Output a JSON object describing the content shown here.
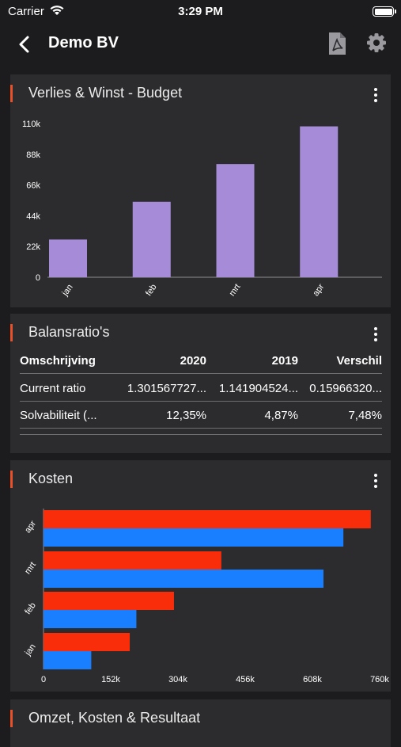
{
  "status_bar": {
    "carrier": "Carrier",
    "time": "3:29 PM"
  },
  "nav": {
    "title": "Demo BV"
  },
  "cards": {
    "pl_budget": {
      "title": "Verlies & Winst - Budget"
    },
    "balance": {
      "title": "Balansratio's",
      "columns": [
        "Omschrijving",
        "2020",
        "2019",
        "Verschil"
      ],
      "rows": [
        [
          "Current ratio",
          "1.301567727...",
          "1.141904524...",
          "0.15966320..."
        ],
        [
          "Solvabiliteit (...",
          "12,35%",
          "4,87%",
          "7,48%"
        ]
      ]
    },
    "kosten": {
      "title": "Kosten"
    },
    "next": {
      "title": "Omzet, Kosten & Resultaat"
    }
  },
  "chart_data": [
    {
      "type": "bar",
      "title": "Verlies & Winst - Budget",
      "categories": [
        "jan",
        "feb",
        "mrt",
        "apr"
      ],
      "values": [
        27000,
        54000,
        81000,
        108000
      ],
      "y_ticks": [
        "0",
        "22k",
        "44k",
        "66k",
        "88k",
        "110k"
      ],
      "ylim": [
        0,
        110000
      ],
      "bar_color": "#a68bd8",
      "grid": false
    },
    {
      "type": "bar",
      "orientation": "horizontal",
      "title": "Kosten",
      "categories": [
        "jan",
        "feb",
        "mrt",
        "apr"
      ],
      "series": [
        {
          "color": "#fa2d0a",
          "values": [
            195000,
            295000,
            402000,
            740000
          ]
        },
        {
          "color": "#1a7fff",
          "values": [
            108000,
            210000,
            633000,
            678000
          ]
        }
      ],
      "x_ticks": [
        "0",
        "152k",
        "304k",
        "456k",
        "608k",
        "760k"
      ],
      "xlim": [
        0,
        760000
      ],
      "grid": false
    }
  ],
  "colors": {
    "accent": "#e8512a",
    "card_bg": "#2c2c2e",
    "page_bg": "#1c1c1e"
  }
}
